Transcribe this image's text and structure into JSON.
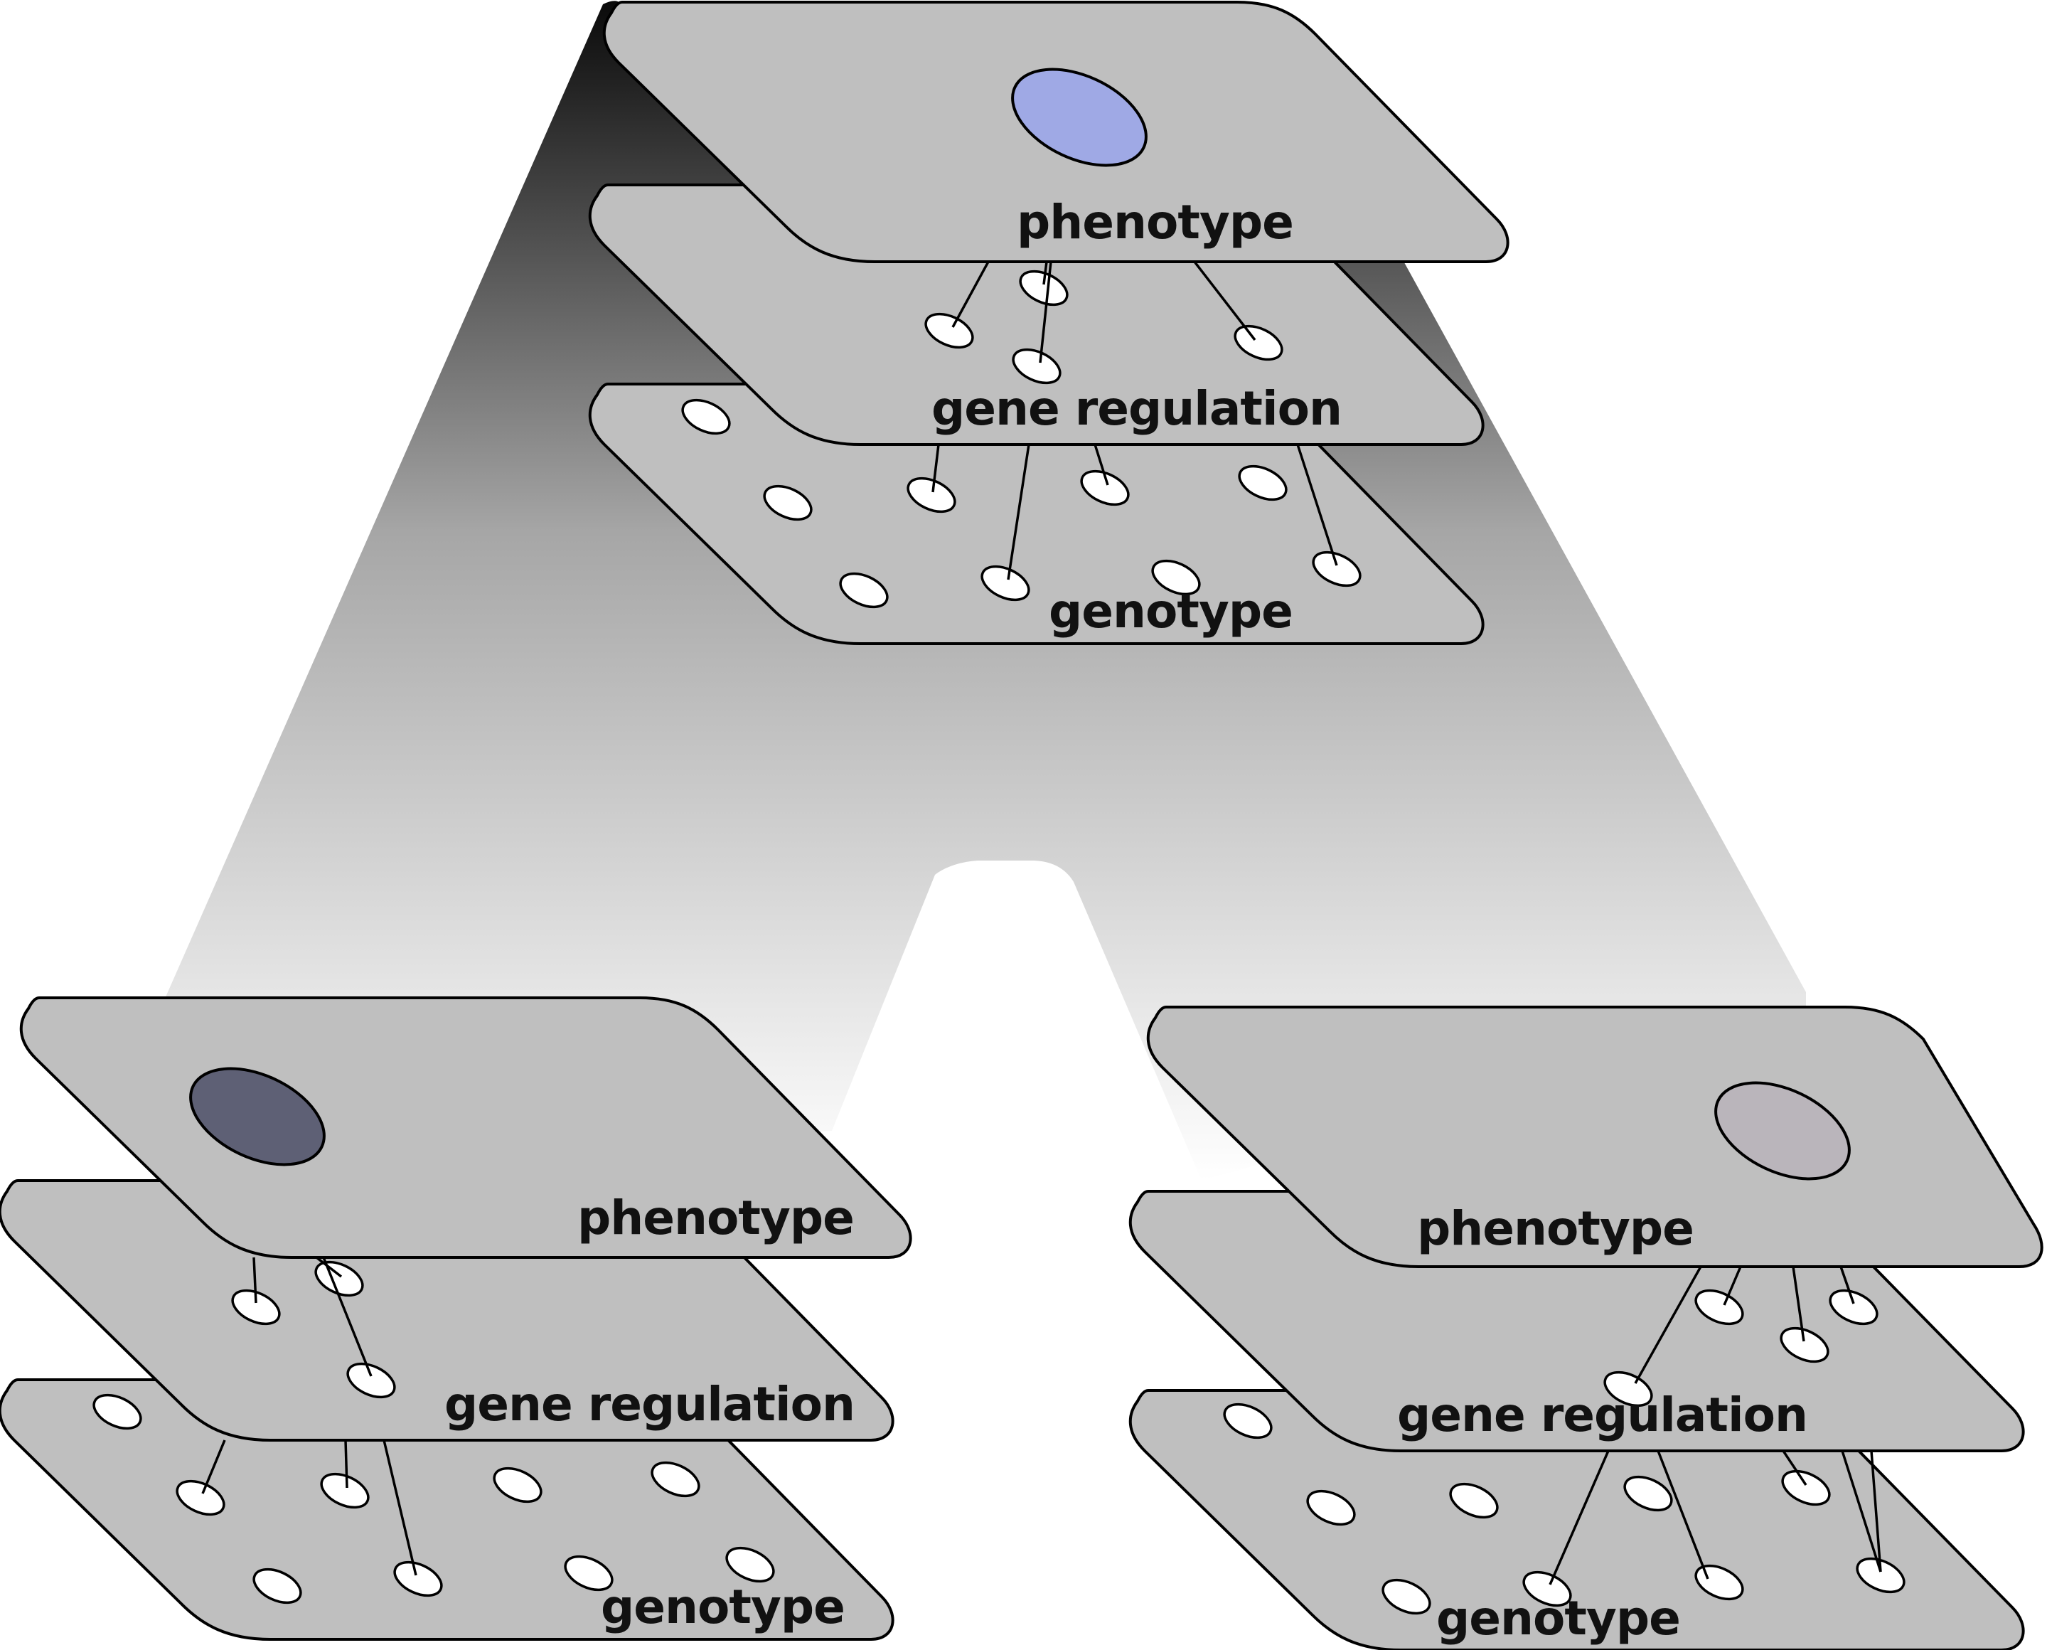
{
  "labels": {
    "phenotype": "phenotype",
    "gene_regulation": "gene regulation",
    "genotype": "genotype"
  },
  "colors": {
    "plane_fill": "#bfbfbf",
    "parent_phenotype": "#9fa9e5",
    "left_child_phenotype": "#5e6075",
    "right_child_phenotype": "#bab5bb",
    "gradient_top": "#0a0a0a",
    "gradient_bottom": "#ffffff"
  },
  "stacks": [
    {
      "id": "parent",
      "phenotype_color": "#9fa9e5"
    },
    {
      "id": "left-child",
      "phenotype_color": "#5e6075"
    },
    {
      "id": "right-child",
      "phenotype_color": "#bab5bb"
    }
  ]
}
